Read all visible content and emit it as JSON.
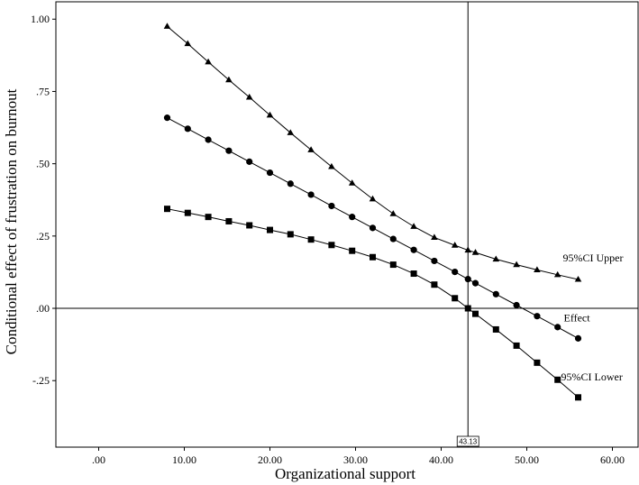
{
  "chart_data": {
    "type": "line",
    "xlabel": "Organizational support",
    "ylabel": "Conditional effect of frustration on burnout",
    "xlim": [
      -5,
      63
    ],
    "ylim": [
      -0.48,
      1.06
    ],
    "xticks": [
      0,
      10,
      20,
      30,
      40,
      50,
      60
    ],
    "xtick_labels": [
      ".00",
      "10.00",
      "20.00",
      "30.00",
      "40.00",
      "50.00",
      "60.00"
    ],
    "yticks": [
      -0.25,
      0,
      0.25,
      0.5,
      0.75,
      1.0
    ],
    "ytick_labels": [
      "-.25",
      ".00",
      ".25",
      ".50",
      ".75",
      "1.00"
    ],
    "reference_lines": {
      "x": 43.13,
      "y": 0
    },
    "reference_label": "43.13",
    "x": [
      8,
      10.4,
      12.8,
      15.2,
      17.6,
      20,
      22.4,
      24.8,
      27.2,
      29.6,
      32,
      34.4,
      36.8,
      39.2,
      41.6,
      43.13,
      44,
      46.4,
      48.8,
      51.2,
      53.6,
      56
    ],
    "series": [
      {
        "name": "95%CI  Upper",
        "marker": "triangle",
        "values": [
          0.975,
          0.915,
          0.852,
          0.79,
          0.73,
          0.668,
          0.607,
          0.548,
          0.49,
          0.433,
          0.378,
          0.327,
          0.283,
          0.245,
          0.218,
          0.201,
          0.193,
          0.17,
          0.151,
          0.133,
          0.116,
          0.1
        ]
      },
      {
        "name": "Effect",
        "marker": "circle",
        "values": [
          0.659,
          0.621,
          0.583,
          0.545,
          0.507,
          0.469,
          0.431,
          0.393,
          0.354,
          0.316,
          0.278,
          0.24,
          0.202,
          0.164,
          0.126,
          0.101,
          0.087,
          0.049,
          0.011,
          -0.027,
          -0.065,
          -0.104
        ]
      },
      {
        "name": "95%CI  Lower",
        "marker": "square",
        "values": [
          0.344,
          0.33,
          0.316,
          0.301,
          0.287,
          0.271,
          0.256,
          0.238,
          0.219,
          0.199,
          0.177,
          0.151,
          0.12,
          0.082,
          0.035,
          0.0,
          -0.019,
          -0.073,
          -0.129,
          -0.188,
          -0.247,
          -0.308
        ]
      }
    ]
  }
}
